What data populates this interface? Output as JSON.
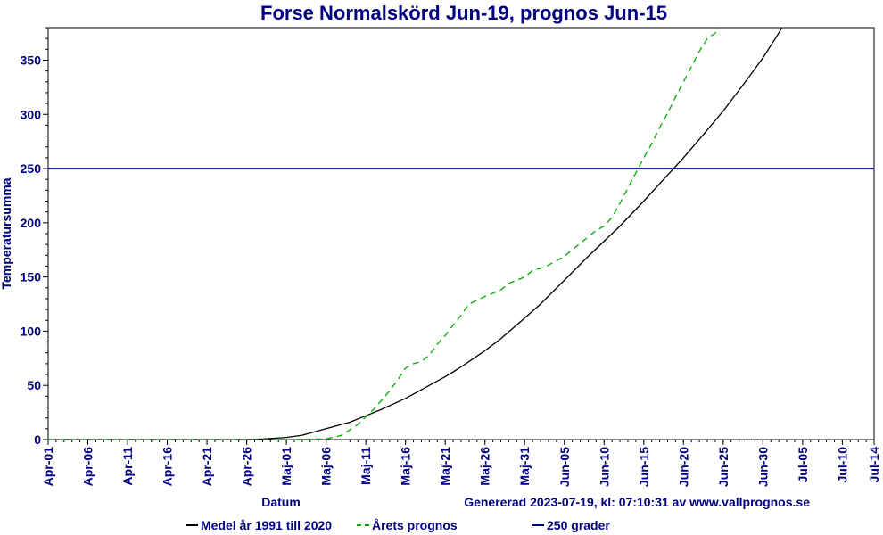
{
  "chart_data": {
    "type": "line",
    "title": "Forse Normalskörd Jun-19, prognos Jun-15",
    "xlabel": "Datum",
    "ylabel": "Temperatursumma",
    "generated": "Genererad 2023-07-19, kl: 07:10:31 av www.vallprognos.se",
    "x_start": "Apr-01",
    "x_end": "Jul-14",
    "ylim": [
      0,
      380
    ],
    "yticks": [
      0,
      50,
      100,
      150,
      200,
      250,
      300,
      350
    ],
    "xticks": [
      {
        "label": "Apr-01",
        "day": 0
      },
      {
        "label": "Apr-06",
        "day": 5
      },
      {
        "label": "Apr-11",
        "day": 10
      },
      {
        "label": "Apr-16",
        "day": 15
      },
      {
        "label": "Apr-21",
        "day": 20
      },
      {
        "label": "Apr-26",
        "day": 25
      },
      {
        "label": "Maj-01",
        "day": 30
      },
      {
        "label": "Maj-06",
        "day": 35
      },
      {
        "label": "Maj-11",
        "day": 40
      },
      {
        "label": "Maj-16",
        "day": 45
      },
      {
        "label": "Maj-21",
        "day": 50
      },
      {
        "label": "Maj-26",
        "day": 55
      },
      {
        "label": "Maj-31",
        "day": 60
      },
      {
        "label": "Jun-05",
        "day": 65
      },
      {
        "label": "Jun-10",
        "day": 70
      },
      {
        "label": "Jun-15",
        "day": 75
      },
      {
        "label": "Jun-20",
        "day": 80
      },
      {
        "label": "Jun-25",
        "day": 85
      },
      {
        "label": "Jun-30",
        "day": 90
      },
      {
        "label": "Jul-05",
        "day": 95
      },
      {
        "label": "Jul-10",
        "day": 100
      },
      {
        "label": "Jul-14",
        "day": 104
      }
    ],
    "series": [
      {
        "name": "Medel år 1991 till 2020",
        "color": "#000000",
        "style": "solid",
        "points": [
          [
            0,
            0
          ],
          [
            25,
            0
          ],
          [
            27,
            0.5
          ],
          [
            30,
            2
          ],
          [
            32,
            4
          ],
          [
            35,
            10
          ],
          [
            38,
            16
          ],
          [
            40,
            22
          ],
          [
            42,
            28
          ],
          [
            45,
            38
          ],
          [
            48,
            50
          ],
          [
            50,
            58
          ],
          [
            52,
            67
          ],
          [
            55,
            82
          ],
          [
            57,
            93
          ],
          [
            60,
            112
          ],
          [
            62,
            125
          ],
          [
            65,
            147
          ],
          [
            68,
            169
          ],
          [
            70,
            183
          ],
          [
            72,
            197
          ],
          [
            75,
            220
          ],
          [
            78,
            244
          ],
          [
            80,
            260
          ],
          [
            82,
            277
          ],
          [
            85,
            303
          ],
          [
            88,
            332
          ],
          [
            90,
            352
          ],
          [
            92,
            375
          ],
          [
            93,
            388
          ]
        ]
      },
      {
        "name": "Årets prognos",
        "color": "#00aa00",
        "style": "dashed",
        "points": [
          [
            0,
            0
          ],
          [
            30,
            0
          ],
          [
            35,
            0.5
          ],
          [
            37,
            4
          ],
          [
            39,
            14
          ],
          [
            41,
            28
          ],
          [
            43,
            45
          ],
          [
            44,
            55
          ],
          [
            45,
            66
          ],
          [
            46,
            70
          ],
          [
            47,
            72
          ],
          [
            48,
            78
          ],
          [
            49,
            88
          ],
          [
            50,
            96
          ],
          [
            52,
            115
          ],
          [
            53,
            125
          ],
          [
            55,
            132
          ],
          [
            57,
            138
          ],
          [
            58,
            144
          ],
          [
            60,
            150
          ],
          [
            61,
            156
          ],
          [
            62,
            158
          ],
          [
            63,
            161
          ],
          [
            65,
            169
          ],
          [
            66,
            175
          ],
          [
            67,
            181
          ],
          [
            68,
            187
          ],
          [
            69,
            193
          ],
          [
            70,
            197
          ],
          [
            71,
            205
          ],
          [
            72,
            218
          ],
          [
            73,
            232
          ],
          [
            74,
            246
          ],
          [
            75,
            260
          ],
          [
            76,
            273
          ],
          [
            77,
            288
          ],
          [
            78,
            301
          ],
          [
            79,
            316
          ],
          [
            80,
            330
          ],
          [
            81,
            344
          ],
          [
            82,
            358
          ],
          [
            83,
            370
          ],
          [
            84,
            375
          ],
          [
            85,
            386
          ],
          [
            86,
            398
          ]
        ]
      },
      {
        "name": "250 grader",
        "color": "#000080",
        "style": "solid",
        "points": [
          [
            0,
            250
          ],
          [
            104,
            250
          ]
        ]
      }
    ],
    "legend_position": "bottom"
  }
}
